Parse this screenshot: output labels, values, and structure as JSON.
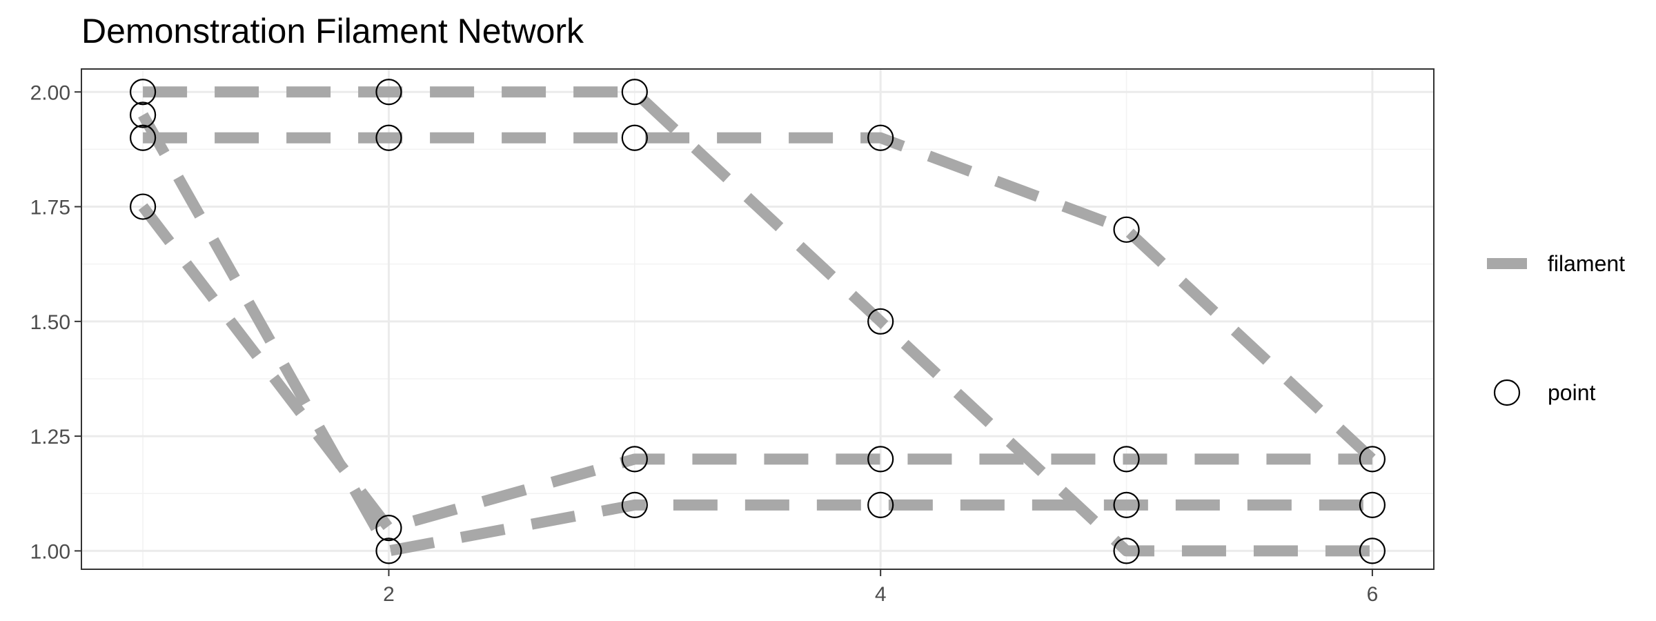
{
  "chart_data": {
    "type": "line",
    "title": "Demonstration Filament Network",
    "xlabel": "",
    "ylabel": "",
    "xlim": [
      0.75,
      6.25
    ],
    "ylim": [
      0.96,
      2.05
    ],
    "x_ticks": [
      2,
      4,
      6
    ],
    "x_tick_labels": [
      "2",
      "4",
      "6"
    ],
    "x_minor_ticks": [
      1,
      3,
      5
    ],
    "y_ticks": [
      1.0,
      1.25,
      1.5,
      1.75,
      2.0
    ],
    "y_tick_labels": [
      "1.00",
      "1.25",
      "1.50",
      "1.75",
      "2.00"
    ],
    "y_minor_ticks": [
      1.125,
      1.375,
      1.625,
      1.875
    ],
    "grid": true,
    "legend_position": "right",
    "legend": [
      {
        "label": "filament",
        "kind": "line",
        "color": "#a8a8a8"
      },
      {
        "label": "point",
        "kind": "point",
        "color": "#000000"
      }
    ],
    "filament_color": "#a8a8a8",
    "point_color": "#000000",
    "filaments": [
      {
        "points": [
          [
            1,
            2.0
          ],
          [
            2,
            2.0
          ],
          [
            3,
            2.0
          ],
          [
            4,
            1.5
          ],
          [
            5,
            1.0
          ],
          [
            6,
            1.0
          ]
        ]
      },
      {
        "points": [
          [
            1,
            1.9
          ],
          [
            2,
            1.9
          ],
          [
            3,
            1.9
          ],
          [
            4,
            1.9
          ],
          [
            5,
            1.7
          ],
          [
            6,
            1.2
          ]
        ]
      },
      {
        "points": [
          [
            1,
            1.95
          ],
          [
            2,
            1.0
          ],
          [
            3,
            1.1
          ],
          [
            4,
            1.1
          ],
          [
            5,
            1.1
          ],
          [
            6,
            1.1
          ]
        ]
      },
      {
        "points": [
          [
            1,
            1.75
          ],
          [
            2,
            1.05
          ],
          [
            3,
            1.2
          ],
          [
            4,
            1.2
          ],
          [
            5,
            1.2
          ],
          [
            6,
            1.2
          ]
        ]
      }
    ],
    "points": [
      [
        1,
        2.0
      ],
      [
        1,
        1.95
      ],
      [
        1,
        1.9
      ],
      [
        1,
        1.75
      ],
      [
        2,
        2.0
      ],
      [
        2,
        1.9
      ],
      [
        2,
        1.05
      ],
      [
        2,
        1.0
      ],
      [
        3,
        2.0
      ],
      [
        3,
        1.9
      ],
      [
        3,
        1.2
      ],
      [
        3,
        1.1
      ],
      [
        4,
        1.9
      ],
      [
        4,
        1.5
      ],
      [
        4,
        1.2
      ],
      [
        4,
        1.1
      ],
      [
        5,
        1.7
      ],
      [
        5,
        1.2
      ],
      [
        5,
        1.1
      ],
      [
        5,
        1.0
      ],
      [
        6,
        1.2
      ],
      [
        6,
        1.1
      ],
      [
        6,
        1.0
      ]
    ]
  }
}
